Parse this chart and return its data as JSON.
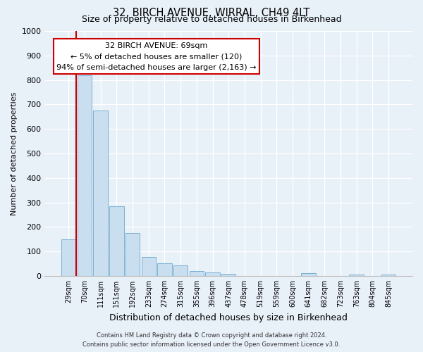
{
  "title": "32, BIRCH AVENUE, WIRRAL, CH49 4LT",
  "subtitle": "Size of property relative to detached houses in Birkenhead",
  "xlabel": "Distribution of detached houses by size in Birkenhead",
  "ylabel": "Number of detached properties",
  "footer_line1": "Contains HM Land Registry data © Crown copyright and database right 2024.",
  "footer_line2": "Contains public sector information licensed under the Open Government Licence v3.0.",
  "bin_labels": [
    "29sqm",
    "70sqm",
    "111sqm",
    "151sqm",
    "192sqm",
    "233sqm",
    "274sqm",
    "315sqm",
    "355sqm",
    "396sqm",
    "437sqm",
    "478sqm",
    "519sqm",
    "559sqm",
    "600sqm",
    "641sqm",
    "682sqm",
    "723sqm",
    "763sqm",
    "804sqm",
    "845sqm"
  ],
  "bar_heights": [
    150,
    820,
    675,
    285,
    175,
    78,
    52,
    43,
    20,
    15,
    9,
    0,
    0,
    0,
    0,
    10,
    0,
    0,
    5,
    0,
    5
  ],
  "bar_color": "#c9dff0",
  "bar_edge_color": "#7ab0d4",
  "background_color": "#e8f0f8",
  "grid_color": "#ffffff",
  "marker_line_color": "#cc0000",
  "annotation_title": "32 BIRCH AVENUE: 69sqm",
  "annotation_line1": "← 5% of detached houses are smaller (120)",
  "annotation_line2": "94% of semi-detached houses are larger (2,163) →",
  "annotation_box_color": "#ffffff",
  "annotation_box_edge": "#cc0000",
  "ylim": [
    0,
    1000
  ],
  "yticks": [
    0,
    100,
    200,
    300,
    400,
    500,
    600,
    700,
    800,
    900,
    1000
  ]
}
